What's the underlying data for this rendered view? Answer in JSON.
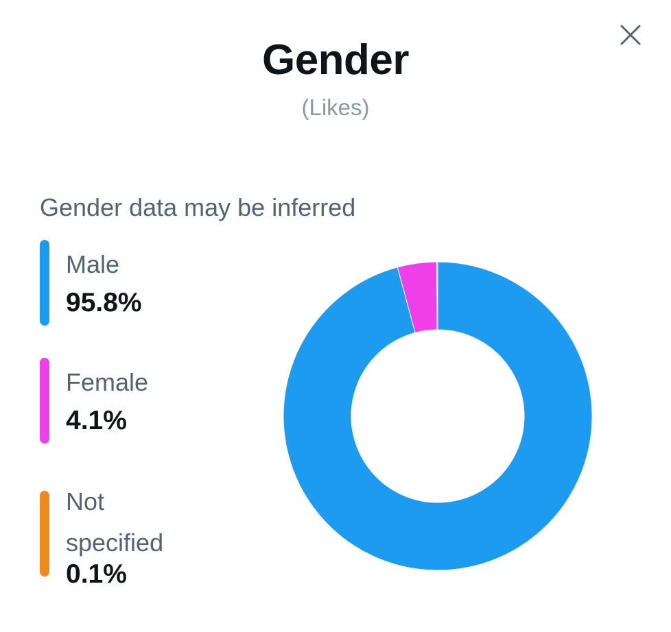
{
  "header": {
    "title": "Gender",
    "subtitle": "(Likes)"
  },
  "note": "Gender data may be inferred",
  "icons": {
    "close": "close-icon"
  },
  "chart_data": {
    "type": "pie",
    "donut": true,
    "categories": [
      "Male",
      "Female",
      "Not specified"
    ],
    "values": [
      95.8,
      4.1,
      0.1
    ],
    "value_labels": [
      "95.8%",
      "4.1%",
      "0.1%"
    ],
    "colors": [
      "#1d9bf0",
      "#f03ee8",
      "#f08a1c"
    ],
    "legend_placement": "left",
    "start_angle": "top",
    "direction": "counterclockwise"
  }
}
